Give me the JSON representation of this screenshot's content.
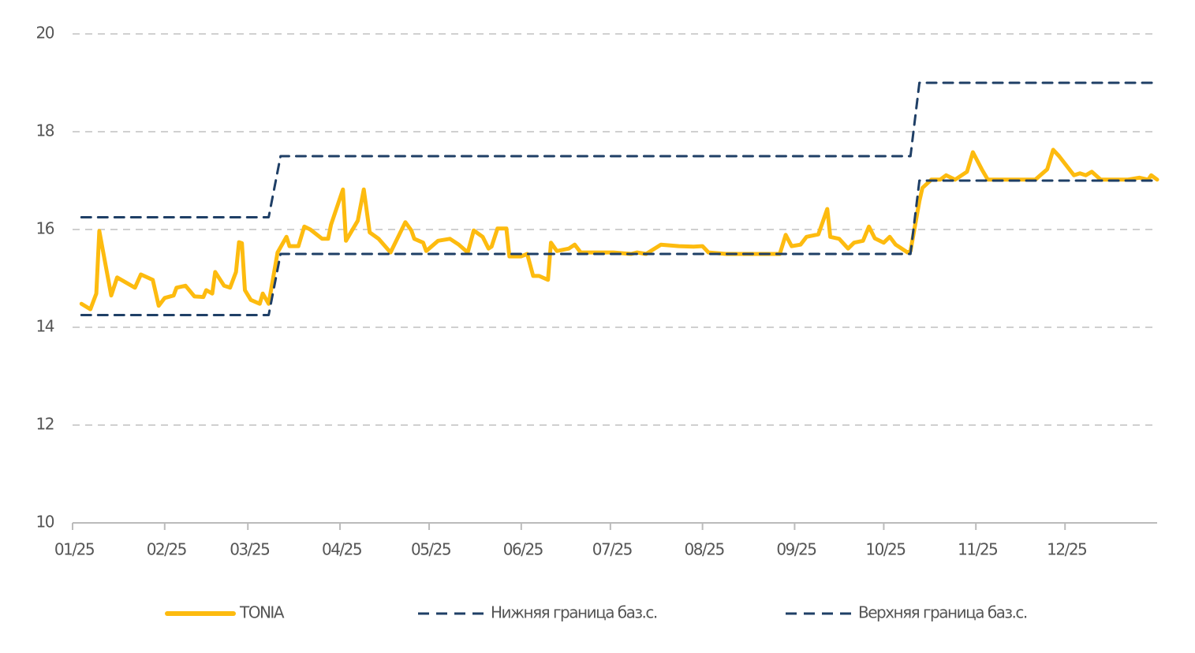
{
  "chart_data": {
    "type": "line",
    "xlim": [
      0,
      365
    ],
    "xticks": [
      {
        "value": 0,
        "label": "01/25"
      },
      {
        "value": 31,
        "label": "02/25"
      },
      {
        "value": 59,
        "label": "03/25"
      },
      {
        "value": 90,
        "label": "04/25"
      },
      {
        "value": 120,
        "label": "05/25"
      },
      {
        "value": 151,
        "label": "06/25"
      },
      {
        "value": 181,
        "label": "07/25"
      },
      {
        "value": 212,
        "label": "08/25"
      },
      {
        "value": 243,
        "label": "09/25"
      },
      {
        "value": 273,
        "label": "10/25"
      },
      {
        "value": 304,
        "label": "11/25"
      },
      {
        "value": 334,
        "label": "12/25"
      }
    ],
    "ylim": [
      10,
      20
    ],
    "yticks": [
      10,
      12,
      14,
      16,
      18,
      20
    ],
    "grid": true,
    "legend": "bottom",
    "series": [
      {
        "name": "TONIA",
        "color": "#FDBB0F",
        "dashed": false,
        "x": [
          3,
          6,
          8,
          9,
          13,
          15,
          21,
          23,
          27,
          29,
          31,
          34,
          35,
          38,
          41,
          44,
          45,
          47,
          48,
          51,
          53,
          55,
          56,
          57,
          58,
          60,
          63,
          64,
          66,
          69,
          72,
          73,
          76,
          78,
          80,
          84,
          86,
          87,
          91,
          92,
          96,
          98,
          100,
          103,
          107,
          112,
          114,
          115,
          118,
          119,
          123,
          127,
          130,
          133,
          135,
          138,
          140,
          141,
          143,
          146,
          147,
          151,
          153,
          155,
          157,
          160,
          161,
          163,
          167,
          169,
          171,
          177,
          182,
          188,
          190,
          193,
          198,
          204,
          209,
          212,
          214,
          220,
          230,
          238,
          240,
          242,
          245,
          247,
          251,
          254,
          255,
          258,
          261,
          263,
          266,
          268,
          270,
          273,
          275,
          277,
          281,
          282,
          285,
          286,
          289,
          292,
          294,
          297,
          301,
          303,
          306,
          308,
          320,
          324,
          328,
          330,
          332,
          337,
          339,
          341,
          343,
          346,
          355,
          359,
          362,
          363,
          365
        ],
        "values": [
          14.48,
          14.37,
          14.69,
          15.97,
          14.65,
          15.02,
          14.81,
          15.08,
          14.97,
          14.44,
          14.6,
          14.65,
          14.81,
          14.85,
          14.63,
          14.62,
          14.76,
          14.69,
          15.13,
          14.85,
          14.81,
          15.13,
          15.74,
          15.72,
          14.76,
          14.56,
          14.48,
          14.69,
          14.48,
          15.53,
          15.85,
          15.66,
          15.66,
          16.06,
          16.0,
          15.81,
          15.81,
          16.1,
          16.82,
          15.77,
          16.18,
          16.82,
          15.94,
          15.81,
          15.53,
          16.15,
          15.98,
          15.81,
          15.73,
          15.56,
          15.77,
          15.81,
          15.69,
          15.53,
          15.98,
          15.85,
          15.61,
          15.65,
          16.02,
          16.02,
          15.45,
          15.45,
          15.5,
          15.05,
          15.05,
          14.97,
          15.73,
          15.56,
          15.61,
          15.69,
          15.53,
          15.53,
          15.53,
          15.5,
          15.53,
          15.5,
          15.69,
          15.66,
          15.65,
          15.66,
          15.53,
          15.5,
          15.5,
          15.5,
          15.89,
          15.66,
          15.69,
          15.85,
          15.9,
          16.42,
          15.85,
          15.81,
          15.61,
          15.73,
          15.77,
          16.06,
          15.82,
          15.73,
          15.85,
          15.69,
          15.53,
          15.56,
          16.58,
          16.85,
          17.02,
          17.02,
          17.11,
          17.02,
          17.18,
          17.58,
          17.23,
          17.02,
          17.02,
          17.02,
          17.23,
          17.63,
          17.5,
          17.11,
          17.15,
          17.11,
          17.18,
          17.02,
          17.02,
          17.06,
          17.02,
          17.11,
          17.02
        ]
      },
      {
        "name": "Нижняя граница баз.с.",
        "color": "#1F3F66",
        "dashed": true,
        "x": [
          3,
          66,
          70,
          282,
          285,
          365
        ],
        "values": [
          14.25,
          14.25,
          15.5,
          15.5,
          17.0,
          17.0
        ]
      },
      {
        "name": "Верхняя граница баз.с.",
        "color": "#1F3F66",
        "dashed": true,
        "x": [
          3,
          66,
          70,
          282,
          285,
          365
        ],
        "values": [
          16.25,
          16.25,
          17.5,
          17.5,
          19.0,
          19.0
        ]
      }
    ]
  }
}
